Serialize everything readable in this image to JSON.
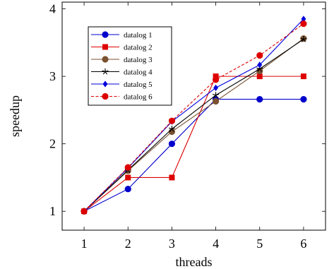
{
  "chart_data": {
    "type": "line",
    "title": "",
    "xlabel": "threads",
    "ylabel": "speedup",
    "x": [
      1,
      2,
      3,
      4,
      5,
      6
    ],
    "xticks": [
      "1",
      "2",
      "3",
      "4",
      "5",
      "6"
    ],
    "yticks": [
      "1",
      "2",
      "3",
      "4"
    ],
    "xlim": [
      0.5,
      6.5
    ],
    "ylim": [
      0.72,
      4.1
    ],
    "grid": false,
    "legend_position": "top-left",
    "series": [
      {
        "name": "datalog 1",
        "color": "#0000cc",
        "marker": "circle",
        "dash": "solid",
        "values": [
          1.0,
          1.33,
          2.0,
          2.66,
          2.66,
          2.66
        ]
      },
      {
        "name": "datalog 2",
        "color": "#dd0000",
        "marker": "square",
        "dash": "solid",
        "values": [
          1.0,
          1.5,
          1.5,
          3.0,
          3.0,
          3.0
        ]
      },
      {
        "name": "datalog 3",
        "color": "#7a5230",
        "marker": "circle",
        "dash": "solid",
        "values": [
          1.0,
          1.6,
          2.18,
          2.63,
          3.08,
          3.56
        ]
      },
      {
        "name": "datalog 4",
        "color": "#000000",
        "marker": "star",
        "dash": "solid",
        "values": [
          1.0,
          1.61,
          2.22,
          2.72,
          3.11,
          3.55
        ]
      },
      {
        "name": "datalog 5",
        "color": "#0000dd",
        "marker": "diamond",
        "dash": "solid",
        "values": [
          1.0,
          1.64,
          2.33,
          2.83,
          3.17,
          3.85
        ]
      },
      {
        "name": "datalog 6",
        "color": "#dd0000",
        "marker": "circle",
        "dash": "dashed",
        "values": [
          1.0,
          1.65,
          2.34,
          2.95,
          3.31,
          3.78
        ]
      }
    ]
  }
}
